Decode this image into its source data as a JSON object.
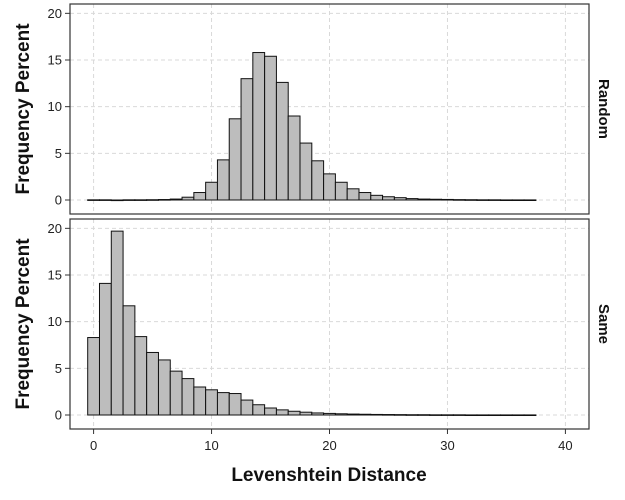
{
  "chart_data": {
    "type": "bar",
    "xlabel": "Levenshtein Distance",
    "ylabel": "Frequency Percent",
    "xlim": [
      -2,
      42
    ],
    "ylim": [
      -1.5,
      21
    ],
    "xticks": [
      0,
      10,
      20,
      30,
      40
    ],
    "yticks": [
      0,
      5,
      10,
      15,
      20
    ],
    "grid": true,
    "bin_width": 1,
    "x": [
      0,
      1,
      2,
      3,
      4,
      5,
      6,
      7,
      8,
      9,
      10,
      11,
      12,
      13,
      14,
      15,
      16,
      17,
      18,
      19,
      20,
      21,
      22,
      23,
      24,
      25,
      26,
      27,
      28,
      29,
      30,
      31,
      32,
      33,
      34,
      35,
      36,
      37
    ],
    "panels": [
      {
        "name": "Random",
        "values": [
          0.02,
          0.02,
          0,
          0.02,
          0.02,
          0.03,
          0.05,
          0.1,
          0.3,
          0.8,
          1.9,
          4.3,
          8.7,
          13.0,
          15.8,
          15.4,
          12.6,
          9.0,
          6.1,
          4.2,
          2.8,
          1.9,
          1.2,
          0.8,
          0.5,
          0.35,
          0.25,
          0.15,
          0.1,
          0.08,
          0.06,
          0.04,
          0.03,
          0.02,
          0.02,
          0.01,
          0.01,
          0.01
        ]
      },
      {
        "name": "Same",
        "values": [
          8.3,
          14.1,
          19.7,
          11.7,
          8.4,
          6.7,
          5.9,
          4.7,
          3.9,
          3.0,
          2.7,
          2.4,
          2.3,
          1.6,
          1.1,
          0.75,
          0.55,
          0.4,
          0.3,
          0.22,
          0.17,
          0.13,
          0.1,
          0.08,
          0.06,
          0.05,
          0.04,
          0.03,
          0.03,
          0.02,
          0.02,
          0.02,
          0.01,
          0.01,
          0.01,
          0.01,
          0.01,
          0.01
        ]
      }
    ]
  }
}
